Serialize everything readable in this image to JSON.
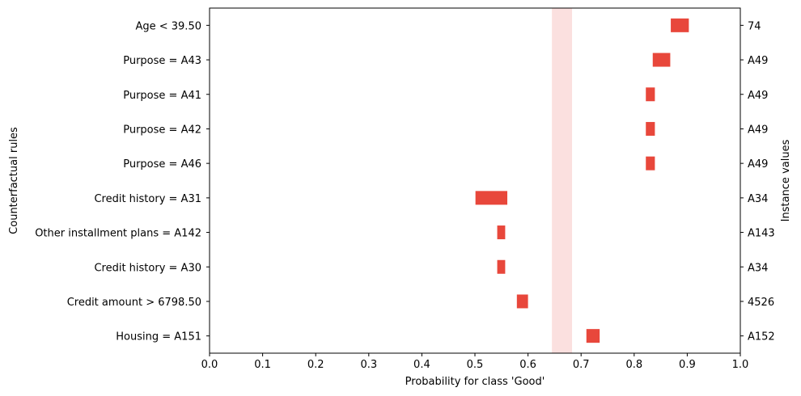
{
  "chart_data": {
    "type": "bar",
    "subtype": "horizontal-interval",
    "xlabel": "Probability for class 'Good'",
    "ylabel": "Counterfactual rules",
    "y2label": "Instance values",
    "xlim": [
      0.0,
      1.0
    ],
    "xticks": [
      "0.0",
      "0.1",
      "0.2",
      "0.3",
      "0.4",
      "0.5",
      "0.6",
      "0.7",
      "0.8",
      "0.9",
      "1.0"
    ],
    "grid": false,
    "threshold_band": {
      "from": 0.645,
      "to": 0.683,
      "color": "#fbe0df"
    },
    "bar_color": "#e8473b",
    "rules": [
      {
        "label": "Age < 39.50",
        "instance_value": "74",
        "low": 0.869,
        "high": 0.903
      },
      {
        "label": "Purpose = A43",
        "instance_value": "A49",
        "low": 0.835,
        "high": 0.868
      },
      {
        "label": "Purpose = A41",
        "instance_value": "A49",
        "low": 0.822,
        "high": 0.839
      },
      {
        "label": "Purpose = A42",
        "instance_value": "A49",
        "low": 0.822,
        "high": 0.839
      },
      {
        "label": "Purpose = A46",
        "instance_value": "A49",
        "low": 0.822,
        "high": 0.839
      },
      {
        "label": "Credit history = A31",
        "instance_value": "A34",
        "low": 0.501,
        "high": 0.561
      },
      {
        "label": "Other installment plans = A142",
        "instance_value": "A143",
        "low": 0.542,
        "high": 0.557
      },
      {
        "label": "Credit history = A30",
        "instance_value": "A34",
        "low": 0.542,
        "high": 0.557
      },
      {
        "label": "Credit amount > 6798.50",
        "instance_value": "4526",
        "low": 0.579,
        "high": 0.6
      },
      {
        "label": "Housing = A151",
        "instance_value": "A152",
        "low": 0.71,
        "high": 0.735
      }
    ]
  }
}
